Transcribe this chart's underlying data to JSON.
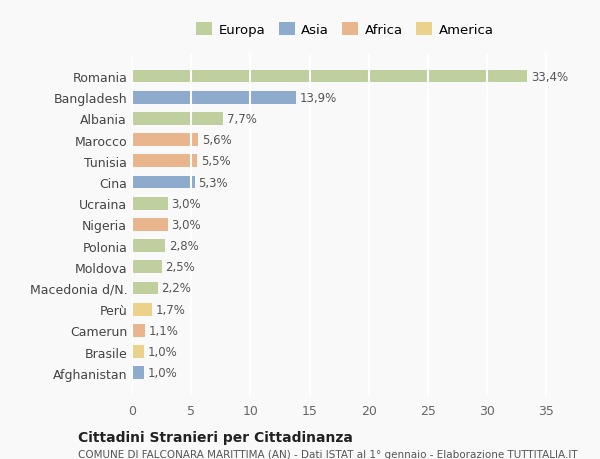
{
  "countries": [
    "Romania",
    "Bangladesh",
    "Albania",
    "Marocco",
    "Tunisia",
    "Cina",
    "Ucraina",
    "Nigeria",
    "Polonia",
    "Moldova",
    "Macedonia d/N.",
    "Perù",
    "Camerun",
    "Brasile",
    "Afghanistan"
  ],
  "values": [
    33.4,
    13.9,
    7.7,
    5.6,
    5.5,
    5.3,
    3.0,
    3.0,
    2.8,
    2.5,
    2.2,
    1.7,
    1.1,
    1.0,
    1.0
  ],
  "labels": [
    "33,4%",
    "13,9%",
    "7,7%",
    "5,6%",
    "5,5%",
    "5,3%",
    "3,0%",
    "3,0%",
    "2,8%",
    "2,5%",
    "2,2%",
    "1,7%",
    "1,1%",
    "1,0%",
    "1,0%"
  ],
  "continents": [
    "Europa",
    "Asia",
    "Europa",
    "Africa",
    "Africa",
    "Asia",
    "Europa",
    "Africa",
    "Europa",
    "Europa",
    "Europa",
    "America",
    "Africa",
    "America",
    "Asia"
  ],
  "colors": {
    "Europa": "#b5c98e",
    "Asia": "#7b9dc4",
    "Africa": "#e5a97a",
    "America": "#e8cc78"
  },
  "legend_order": [
    "Europa",
    "Asia",
    "Africa",
    "America"
  ],
  "title": "Cittadini Stranieri per Cittadinanza",
  "subtitle": "COMUNE DI FALCONARA MARITTIMA (AN) - Dati ISTAT al 1° gennaio - Elaborazione TUTTITALIA.IT",
  "xlim": [
    0,
    36
  ],
  "xticks": [
    0,
    5,
    10,
    15,
    20,
    25,
    30,
    35
  ],
  "bg_color": "#f9f9f9",
  "grid_color": "#ffffff",
  "bar_alpha": 0.85
}
